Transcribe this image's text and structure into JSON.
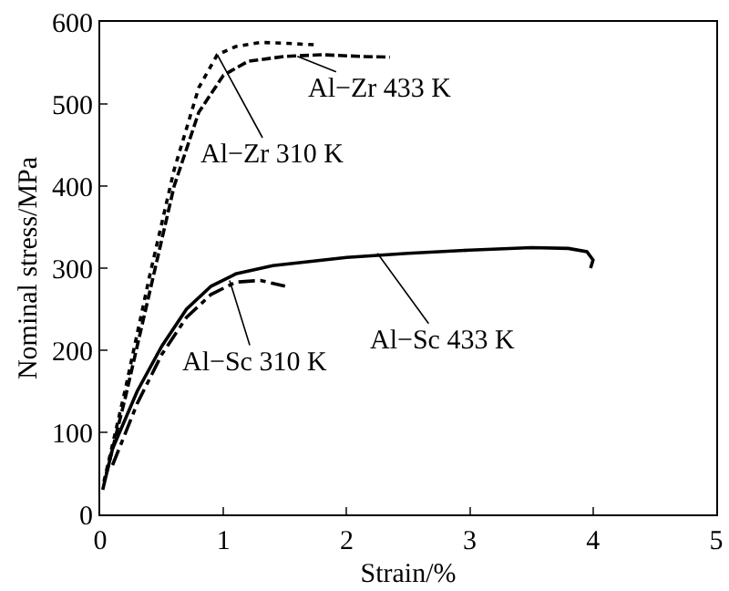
{
  "chart_data": {
    "type": "line",
    "xlabel": "Strain/%",
    "ylabel": "Nominal stress/MPa",
    "xlim": [
      0,
      5
    ],
    "xticks": [
      0,
      1,
      2,
      3,
      4,
      5
    ],
    "ylim": [
      0,
      600
    ],
    "yticks": [
      0,
      100,
      200,
      300,
      400,
      500,
      600
    ],
    "grid": false,
    "marker": "none",
    "series": [
      {
        "color": "#000000",
        "line_style": "dotted",
        "x": [
          0.03,
          0.2,
          0.4,
          0.6,
          0.8,
          0.95,
          1.1,
          1.3,
          1.5,
          1.75
        ],
        "values": [
          40,
          150,
          290,
          420,
          520,
          560,
          570,
          575,
          574,
          572
        ]
      },
      {
        "color": "#000000",
        "line_style": "dashed",
        "x": [
          0.05,
          0.2,
          0.4,
          0.6,
          0.8,
          1.0,
          1.2,
          1.5,
          1.8,
          2.1,
          2.35
        ],
        "values": [
          50,
          140,
          270,
          400,
          490,
          535,
          552,
          558,
          560,
          558,
          557
        ]
      },
      {
        "color": "#000000",
        "line_style": "solid",
        "x": [
          0.02,
          0.1,
          0.3,
          0.5,
          0.7,
          0.9,
          1.1,
          1.4,
          2.0,
          2.5,
          3.0,
          3.5,
          3.8,
          3.95,
          4.0,
          3.98
        ],
        "values": [
          30,
          80,
          150,
          205,
          250,
          278,
          293,
          303,
          313,
          318,
          322,
          325,
          324,
          320,
          310,
          300
        ]
      },
      {
        "color": "#000000",
        "line_style": "dashdot",
        "x": [
          0.1,
          0.3,
          0.5,
          0.7,
          0.9,
          1.1,
          1.3,
          1.5
        ],
        "values": [
          60,
          135,
          195,
          240,
          268,
          283,
          285,
          278
        ]
      }
    ],
    "annotations": [
      {
        "text": "Al−Zr 433 K",
        "x": 1.6,
        "y": 558
      },
      {
        "text": "Al−Zr 310 K",
        "x": 0.95,
        "y": 560
      },
      {
        "text": "Al−Sc 310 K",
        "x": 1.05,
        "y": 285
      },
      {
        "text": "Al−Sc 433 K",
        "x": 2.25,
        "y": 318
      }
    ]
  }
}
